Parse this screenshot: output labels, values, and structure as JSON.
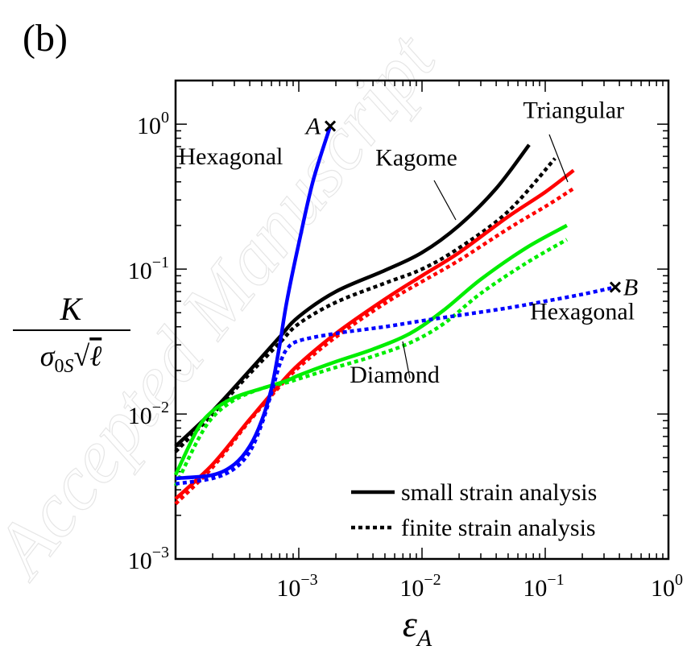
{
  "panel_label": "(b)",
  "watermark": "Accepted Manuscript",
  "chart_data": {
    "type": "line",
    "title": "",
    "xlabel": "ε_A",
    "ylabel": "K / (σ_0S √ℓ)",
    "xscale": "log",
    "yscale": "log",
    "xlim": [
      0.0001,
      1
    ],
    "ylim": [
      0.001,
      2
    ],
    "grid": false,
    "legend_position": "bottom-right",
    "x_ticks": [
      {
        "value": 0.001,
        "base": "10",
        "exp": "−3"
      },
      {
        "value": 0.01,
        "base": "10",
        "exp": "−2"
      },
      {
        "value": 0.1,
        "base": "10",
        "exp": "−1"
      },
      {
        "value": 1,
        "base": "10",
        "exp": "0"
      }
    ],
    "y_ticks": [
      {
        "value": 0.001,
        "base": "10",
        "exp": "−3"
      },
      {
        "value": 0.01,
        "base": "10",
        "exp": "−2"
      },
      {
        "value": 0.1,
        "base": "10",
        "exp": "−1"
      },
      {
        "value": 1,
        "base": "10",
        "exp": "0"
      }
    ],
    "legend": [
      {
        "label": "small strain analysis",
        "style": "solid",
        "color": "#000000"
      },
      {
        "label": "finite strain analysis",
        "style": "dotted",
        "color": "#000000"
      }
    ],
    "series": [
      {
        "name": "Kagome",
        "analysis": "small",
        "color": "#000000",
        "style": "solid",
        "x": [
          0.0001,
          0.0002,
          0.0004,
          0.0007,
          0.001,
          0.002,
          0.005,
          0.01,
          0.02,
          0.04,
          0.074
        ],
        "y": [
          0.006,
          0.0105,
          0.02,
          0.034,
          0.047,
          0.07,
          0.098,
          0.13,
          0.2,
          0.36,
          0.72
        ]
      },
      {
        "name": "Kagome",
        "analysis": "finite",
        "color": "#000000",
        "style": "dotted",
        "x": [
          0.0001,
          0.0002,
          0.0004,
          0.0007,
          0.001,
          0.002,
          0.005,
          0.01,
          0.02,
          0.05,
          0.12
        ],
        "y": [
          0.0055,
          0.01,
          0.019,
          0.031,
          0.042,
          0.059,
          0.08,
          0.1,
          0.14,
          0.25,
          0.58
        ]
      },
      {
        "name": "Triangular",
        "analysis": "small",
        "color": "#ff0000",
        "style": "solid",
        "x": [
          0.0001,
          0.0002,
          0.0004,
          0.0007,
          0.001,
          0.002,
          0.005,
          0.01,
          0.02,
          0.05,
          0.1,
          0.17
        ],
        "y": [
          0.0026,
          0.0045,
          0.0092,
          0.016,
          0.022,
          0.036,
          0.062,
          0.09,
          0.13,
          0.23,
          0.34,
          0.48
        ]
      },
      {
        "name": "Triangular",
        "analysis": "finite",
        "color": "#ff0000",
        "style": "dotted",
        "x": [
          0.0001,
          0.0002,
          0.0004,
          0.0007,
          0.001,
          0.002,
          0.005,
          0.01,
          0.02,
          0.05,
          0.1,
          0.17
        ],
        "y": [
          0.0024,
          0.0043,
          0.009,
          0.0155,
          0.021,
          0.034,
          0.058,
          0.082,
          0.115,
          0.19,
          0.27,
          0.36
        ]
      },
      {
        "name": "Diamond",
        "analysis": "small",
        "color": "#00ee00",
        "style": "solid",
        "x": [
          0.0001,
          0.00015,
          0.0002,
          0.0003,
          0.0005,
          0.0008,
          0.001,
          0.002,
          0.004,
          0.008,
          0.015,
          0.03,
          0.07,
          0.15
        ],
        "y": [
          0.0038,
          0.0078,
          0.0105,
          0.013,
          0.015,
          0.017,
          0.0185,
          0.023,
          0.028,
          0.036,
          0.052,
          0.085,
          0.14,
          0.2
        ]
      },
      {
        "name": "Diamond",
        "analysis": "finite",
        "color": "#00ee00",
        "style": "dotted",
        "x": [
          0.0001,
          0.00015,
          0.0002,
          0.0003,
          0.0005,
          0.0008,
          0.001,
          0.002,
          0.004,
          0.008,
          0.015,
          0.03,
          0.07,
          0.15
        ],
        "y": [
          0.0032,
          0.0065,
          0.0095,
          0.0125,
          0.015,
          0.0165,
          0.0175,
          0.021,
          0.025,
          0.031,
          0.042,
          0.068,
          0.11,
          0.16
        ]
      },
      {
        "name": "Hexagonal",
        "analysis": "small",
        "color": "#0000ff",
        "style": "solid",
        "x": [
          0.0001,
          0.0002,
          0.0003,
          0.0004,
          0.0005,
          0.0006,
          0.0007,
          0.0008,
          0.001,
          0.0013,
          0.0018
        ],
        "y": [
          0.0036,
          0.0038,
          0.0045,
          0.006,
          0.009,
          0.015,
          0.03,
          0.06,
          0.15,
          0.4,
          0.97
        ]
      },
      {
        "name": "Hexagonal",
        "analysis": "finite",
        "color": "#0000ff",
        "style": "dotted",
        "x": [
          0.0001,
          0.0002,
          0.0003,
          0.0004,
          0.0005,
          0.0006,
          0.0007,
          0.0008,
          0.001,
          0.002,
          0.005,
          0.01,
          0.02,
          0.05,
          0.1,
          0.2,
          0.37
        ],
        "y": [
          0.0033,
          0.0036,
          0.0042,
          0.0055,
          0.0085,
          0.014,
          0.022,
          0.028,
          0.032,
          0.036,
          0.04,
          0.044,
          0.048,
          0.054,
          0.06,
          0.067,
          0.075
        ]
      }
    ],
    "annotations": [
      {
        "text": "Triangular",
        "x": 0.17,
        "y": 1.1
      },
      {
        "text": "Kagome",
        "x": 0.009,
        "y": 0.52
      },
      {
        "text": "Hexagonal",
        "x": 0.00028,
        "y": 0.53
      },
      {
        "text": "Hexagonal",
        "x": 0.2,
        "y": 0.045
      },
      {
        "text": "Diamond",
        "x": 0.006,
        "y": 0.0165
      }
    ],
    "markers": [
      {
        "label": "A",
        "x": 0.0018,
        "y": 0.97
      },
      {
        "label": "B",
        "x": 0.37,
        "y": 0.075
      }
    ]
  }
}
